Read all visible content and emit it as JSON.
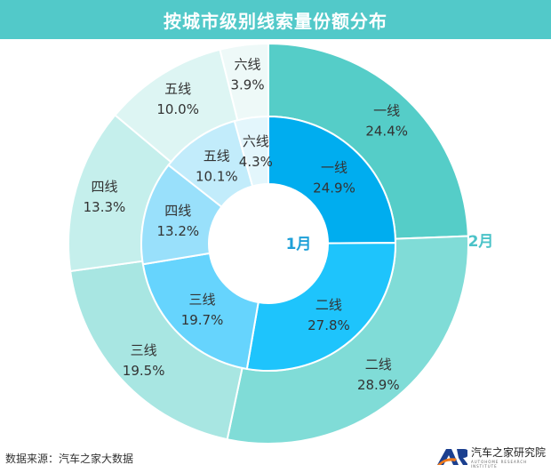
{
  "chart_data": {
    "type": "pie",
    "title": "按城市级别线索量份额分布",
    "categories": [
      "一线",
      "二线",
      "三线",
      "四线",
      "五线",
      "六线"
    ],
    "series": [
      {
        "name": "1月",
        "ring": "inner",
        "values": [
          24.9,
          27.8,
          19.7,
          13.2,
          10.1,
          4.3
        ],
        "colors": [
          "#00adef",
          "#1ec4fc",
          "#66d4fd",
          "#99e0fb",
          "#c2ecfb",
          "#e3f6fc"
        ]
      },
      {
        "name": "2月",
        "ring": "outer",
        "values": [
          24.4,
          28.9,
          19.5,
          13.3,
          10.0,
          3.9
        ],
        "colors": [
          "#55cdc8",
          "#80dcd7",
          "#a8e6e2",
          "#c5efec",
          "#ddf5f3",
          "#eef9f8"
        ]
      }
    ],
    "value_suffix": "%"
  },
  "footer": {
    "source": "数据来源：汽车之家大数据",
    "logo_text": "汽车之家研究院",
    "logo_sub": "AUTOHOME RESEARCH INSTITUTE"
  },
  "colors": {
    "title_bar": "#52c9c9",
    "inner_label": "#1ea0d8",
    "outer_label": "#4bc3c8"
  }
}
